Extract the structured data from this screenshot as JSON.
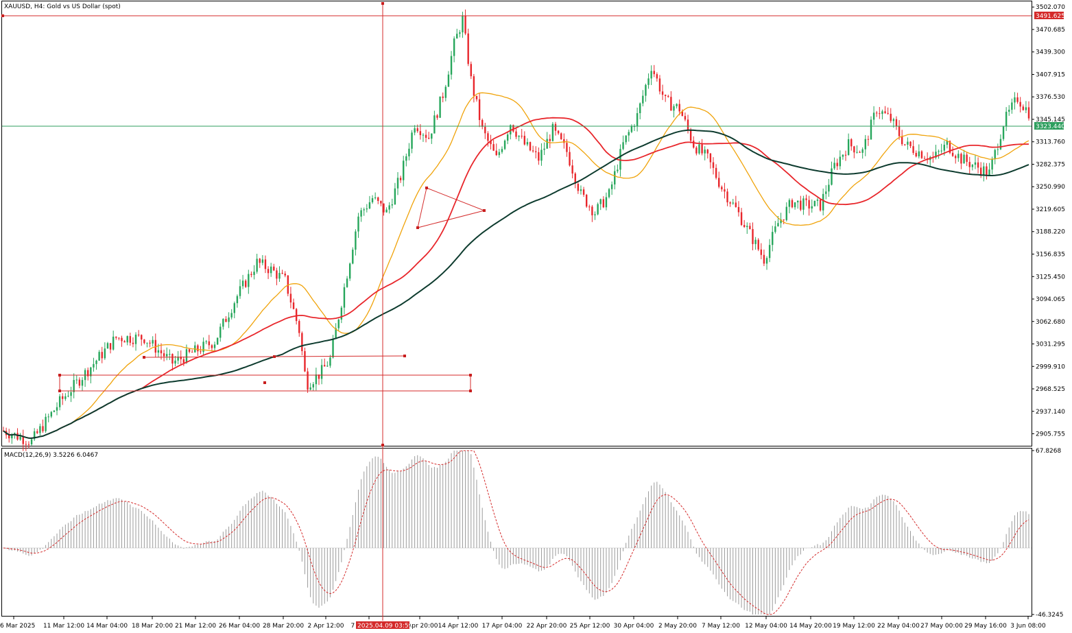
{
  "title": "XAUUSD, H4:  Gold vs US Dollar (spot)",
  "macd_label": "MACD(12,26,9) 3.5226 6.0467",
  "colors": {
    "bull": "#26a65b",
    "bear": "#e8262b",
    "ma_fast": "#f0a30a",
    "ma_mid": "#e8262b",
    "ma_slow": "#0d3b2e",
    "hline_red": "#d42a2a",
    "hline_green": "#2e9e5e",
    "grid": "#000000"
  },
  "price_tags": {
    "red": "3491.625",
    "green": "3323.440"
  },
  "cursor_label": "2025.04.09 03:59",
  "chart_data": [
    {
      "type": "candlestick",
      "y_ticks": [
        "3502.070",
        "3470.685",
        "3439.300",
        "3407.915",
        "3376.530",
        "3345.145",
        "3313.760",
        "3282.375",
        "3250.990",
        "3219.605",
        "3188.220",
        "3156.835",
        "3125.450",
        "3094.065",
        "3062.680",
        "3031.295",
        "2999.910",
        "2968.525",
        "2937.140",
        "2905.755"
      ],
      "x_ticks": [
        "6 Mar 2025",
        "11 Mar 12:00",
        "14 Mar 04:00",
        "18 Mar 20:00",
        "21 Mar 12:00",
        "26 Mar 04:00",
        "28 Mar 20:00",
        "2 Apr 12:00",
        "7 Apr 04:00",
        "9 Apr 20:00",
        "14 Apr 12:00",
        "17 Apr 04:00",
        "22 Apr 20:00",
        "25 Apr 12:00",
        "30 Apr 04:00",
        "2 May 20:00",
        "7 May 12:00",
        "12 May 04:00",
        "14 May 20:00",
        "19 May 12:00",
        "22 May 04:00",
        "27 May 00:00",
        "29 May 16:00",
        "3 Jun 08:00"
      ],
      "ylim": [
        2889,
        3509
      ],
      "hlines": [
        3491.625,
        3323.44
      ],
      "ma_labels": [
        "fast",
        "mid",
        "slow"
      ]
    },
    {
      "type": "histogram",
      "name": "MACD(12,26,9)",
      "ylim": [
        -46.3245,
        67.8268
      ],
      "y_ticks": [
        "67.8268",
        "-46.3245"
      ]
    }
  ]
}
